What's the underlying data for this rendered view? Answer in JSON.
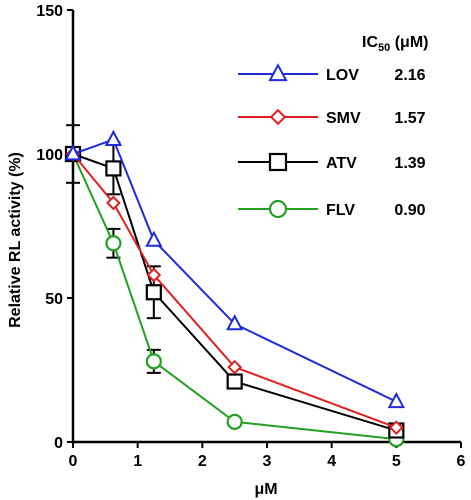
{
  "chart_data": {
    "type": "line",
    "title": "",
    "xlabel": "μM",
    "ylabel": "Relative RL activity (%)",
    "xlim": [
      0,
      6
    ],
    "ylim": [
      0,
      150
    ],
    "xticks": [
      0,
      1,
      2,
      3,
      4,
      5,
      6
    ],
    "yticks": [
      0,
      50,
      100,
      150
    ],
    "grid": false,
    "legend": {
      "placement": "top-right",
      "header_main": "IC",
      "header_sub": "50",
      "header_unit": " (μM)"
    },
    "series": [
      {
        "name": "LOV",
        "ic50": "2.16",
        "color": "#1f2bd6",
        "marker": "triangle",
        "x": [
          0,
          0.625,
          1.25,
          2.5,
          5
        ],
        "values": [
          100,
          105,
          70,
          41,
          14
        ],
        "errors": [
          0,
          0,
          0,
          0,
          0
        ]
      },
      {
        "name": "SMV",
        "ic50": "1.57",
        "color": "#e02020",
        "marker": "diamond",
        "x": [
          0,
          0.625,
          1.25,
          2.5,
          5
        ],
        "values": [
          100,
          83,
          58,
          26,
          5
        ],
        "errors": [
          0,
          0,
          0,
          0,
          0
        ]
      },
      {
        "name": "ATV",
        "ic50": "1.39",
        "color": "#000000",
        "marker": "square",
        "x": [
          0,
          0.625,
          1.25,
          2.5,
          5
        ],
        "values": [
          100,
          95,
          52,
          21,
          4
        ],
        "errors": [
          10,
          9,
          9,
          0,
          0
        ]
      },
      {
        "name": "FLV",
        "ic50": "0.90",
        "color": "#22a022",
        "marker": "circle",
        "x": [
          0,
          0.625,
          1.25,
          2.5,
          5
        ],
        "values": [
          100,
          69,
          28,
          7,
          1
        ],
        "errors": [
          0,
          5,
          4,
          0,
          0
        ]
      }
    ]
  }
}
